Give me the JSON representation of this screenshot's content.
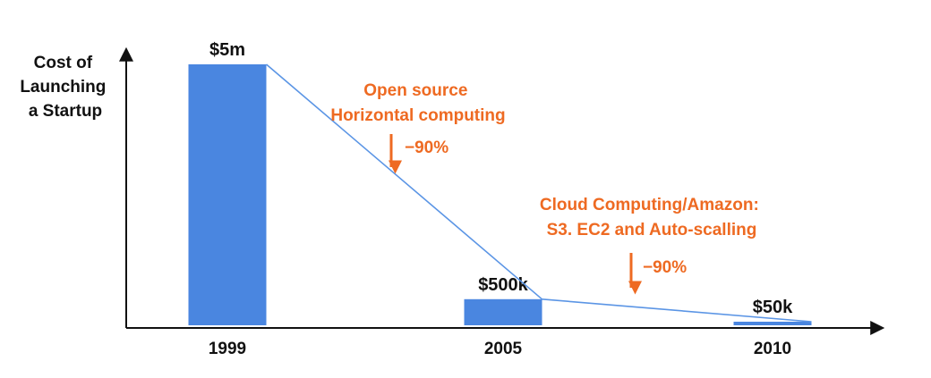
{
  "chart_data": {
    "type": "bar",
    "title": "",
    "ylabel": [
      "Cost of",
      "Launching",
      "a Startup"
    ],
    "xlabel": "",
    "categories": [
      "1999",
      "2005",
      "2010"
    ],
    "series": [
      {
        "values": [
          5000000,
          500000,
          50000
        ],
        "value_labels": [
          "$5m",
          "$500k",
          "$50k"
        ]
      }
    ],
    "ylim": [
      0,
      5800000
    ],
    "grid": false,
    "legend": "none",
    "connector_line": true,
    "annotations": [
      {
        "lines": [
          "Open source",
          "Horizontal computing"
        ],
        "change": "−90%",
        "between": [
          "1999",
          "2005"
        ]
      },
      {
        "lines": [
          "Cloud Computing/Amazon:",
          "S3. EC2 and Auto-scalling"
        ],
        "change": "−90%",
        "between": [
          "2005",
          "2010"
        ]
      }
    ],
    "colors": {
      "bar": "#4a86e0",
      "line": "#5b95e5",
      "annotation": "#ee6a22",
      "axis": "#111111"
    }
  }
}
